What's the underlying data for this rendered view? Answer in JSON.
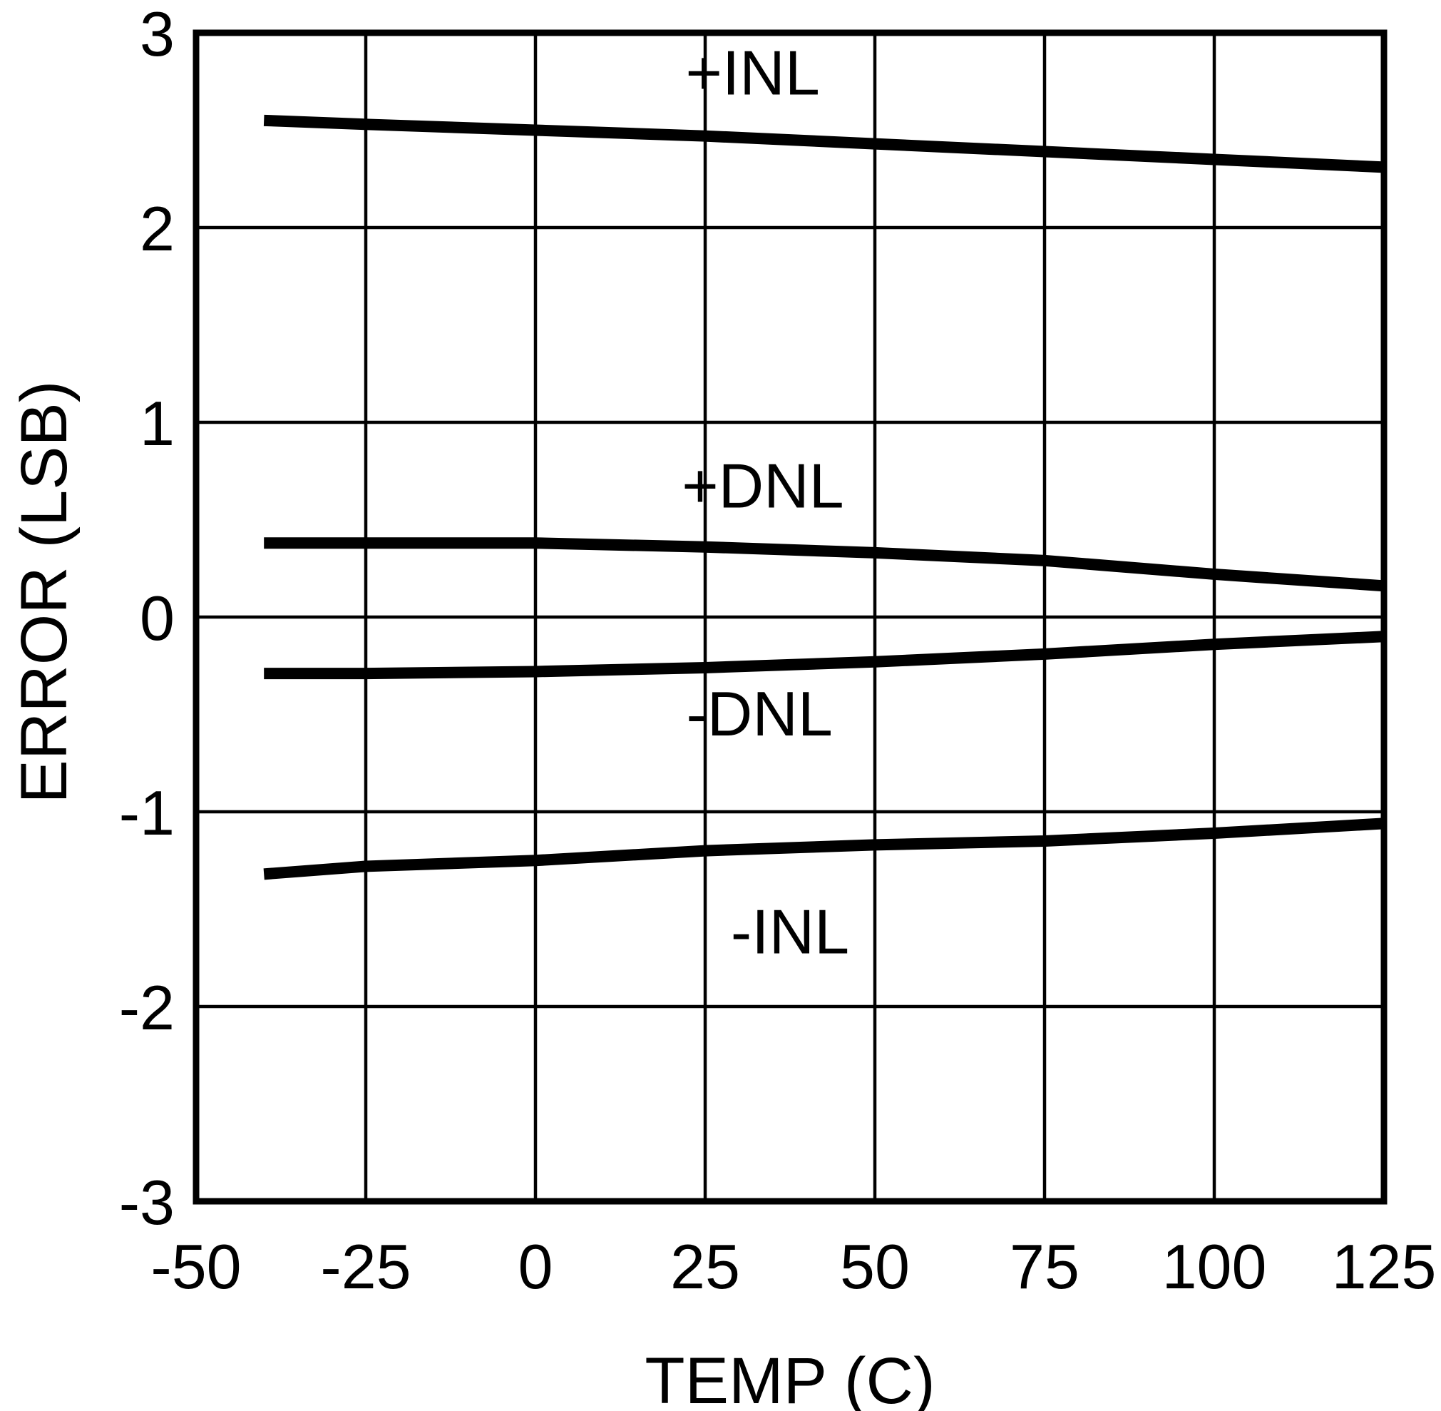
{
  "figure": {
    "background": "#ffffff",
    "ink": "#000000"
  },
  "chart_data": {
    "type": "line",
    "title": "",
    "xlabel": "TEMP (C)",
    "ylabel": "ERROR (LSB)",
    "xlim": [
      -50,
      125
    ],
    "ylim": [
      -3,
      3
    ],
    "x_ticks": [
      -50,
      -25,
      0,
      25,
      50,
      75,
      100,
      125
    ],
    "y_ticks": [
      3,
      2,
      1,
      0,
      -1,
      -2,
      -3
    ],
    "grid": true,
    "legend_position": "inline-labels",
    "ink": "#000000",
    "line_color": "#000000",
    "line_width": 16,
    "x": [
      -40,
      -25,
      0,
      25,
      50,
      75,
      100,
      125
    ],
    "series": [
      {
        "id": "pos-inl",
        "name": "+INL",
        "values": [
          2.55,
          2.53,
          2.5,
          2.47,
          2.43,
          2.39,
          2.35,
          2.31
        ],
        "label_at": {
          "x": 32,
          "y": 2.8
        }
      },
      {
        "id": "pos-dnl",
        "name": "+DNL",
        "values": [
          0.38,
          0.38,
          0.38,
          0.36,
          0.33,
          0.29,
          0.22,
          0.16
        ],
        "label_at": {
          "x": 33.5,
          "y": 0.68
        }
      },
      {
        "id": "neg-dnl",
        "name": "-DNL",
        "values": [
          -0.29,
          -0.29,
          -0.28,
          -0.26,
          -0.23,
          -0.19,
          -0.14,
          -0.1
        ],
        "label_at": {
          "x": 33,
          "y": -0.49
        }
      },
      {
        "id": "neg-inl",
        "name": "-INL",
        "values": [
          -1.32,
          -1.28,
          -1.25,
          -1.2,
          -1.17,
          -1.15,
          -1.11,
          -1.06
        ],
        "label_at": {
          "x": 37.5,
          "y": -1.61
        }
      }
    ]
  }
}
